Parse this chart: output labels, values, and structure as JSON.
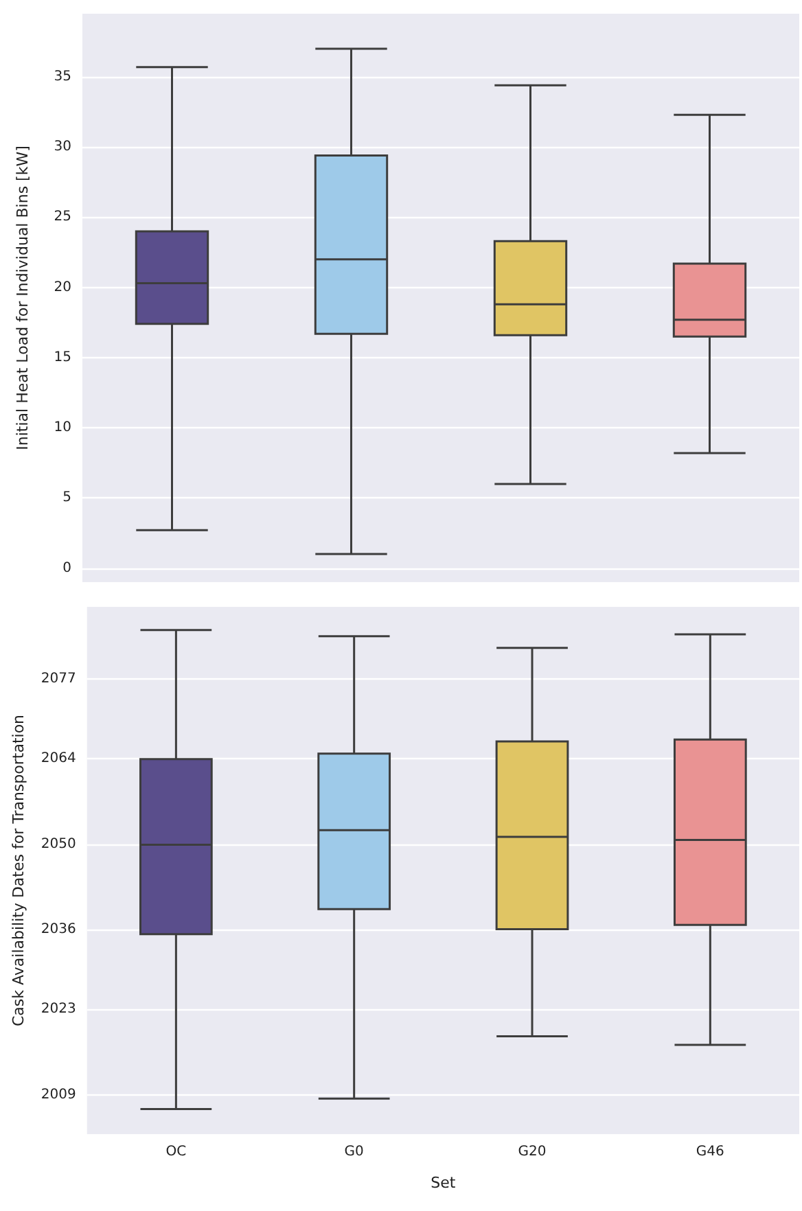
{
  "chart_data": [
    {
      "type": "box",
      "ylabel": "Initial Heat Load for Individual Bins [kW]",
      "categories": [
        null,
        null,
        null,
        null
      ],
      "colors": [
        "#5a4e8c",
        "#9ecae9",
        "#e0c564",
        "#e99393"
      ],
      "boxes": [
        {
          "low": 2.7,
          "q1": 17.4,
          "median": 20.3,
          "q3": 24,
          "high": 35.7
        },
        {
          "low": 1,
          "q1": 16.7,
          "median": 22,
          "q3": 29.4,
          "high": 37
        },
        {
          "low": 6,
          "q1": 16.6,
          "median": 18.8,
          "q3": 23.3,
          "high": 34.4
        },
        {
          "low": 8.2,
          "q1": 16.5,
          "median": 17.7,
          "q3": 21.7,
          "high": 32.3
        }
      ],
      "ylim": [
        -1,
        39.5
      ],
      "yticks": [
        0,
        5,
        10,
        15,
        20,
        25,
        30,
        35
      ],
      "grid": "y",
      "tick_labels": "y"
    },
    {
      "type": "box",
      "xlabel": "Set",
      "ylabel": "Cask Availability Dates for Transportation",
      "categories": [
        "OC",
        "G0",
        "G20",
        "G46"
      ],
      "colors": [
        "#5a4e8c",
        "#9ecae9",
        "#e0c564",
        "#e99393"
      ],
      "boxes": [
        {
          "low": 2006.7,
          "q1": 2035.3,
          "median": 2049.9,
          "q3": 2063.9,
          "high": 2085
        },
        {
          "low": 2008.4,
          "q1": 2039.4,
          "median": 2052.3,
          "q3": 2064.8,
          "high": 2084
        },
        {
          "low": 2018.6,
          "q1": 2036.1,
          "median": 2051.2,
          "q3": 2066.8,
          "high": 2082.1
        },
        {
          "low": 2017.2,
          "q1": 2036.8,
          "median": 2050.7,
          "q3": 2067.1,
          "high": 2084.3
        }
      ],
      "ylim": [
        2002.6,
        2088.8
      ],
      "yticks": [
        2009,
        2023,
        2036,
        2050,
        2064,
        2077
      ],
      "grid": "y"
    }
  ]
}
